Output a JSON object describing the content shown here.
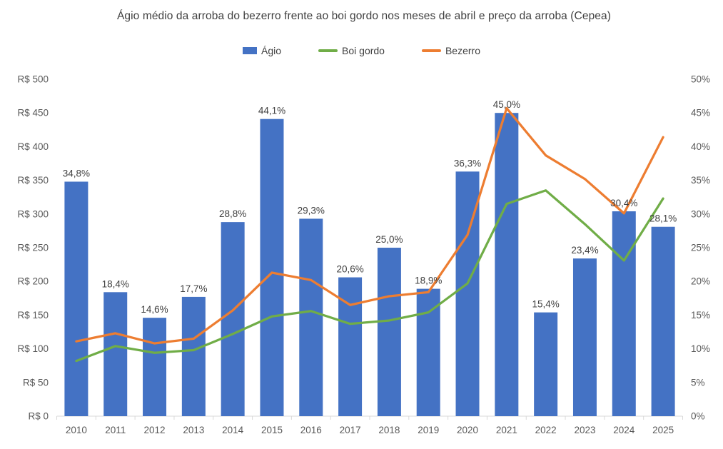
{
  "title": "Ágio médio da arroba do bezerro frente ao boi gordo nos meses de abril e preço da arroba (Cepea)",
  "legend": {
    "items": [
      {
        "label": "Ágio",
        "swatch": "bar-swatch"
      },
      {
        "label": "Boi gordo",
        "swatch": "line-swatch"
      },
      {
        "label": "Bezerro",
        "swatch": "line-swatch"
      }
    ]
  },
  "colors": {
    "agio_bar": "#4472C4",
    "boi_gordo_line": "#70AD47",
    "bezerro_line": "#ED7D31",
    "title_text": "#404040",
    "data_label_text": "#404040",
    "axis_label_text": "#595959",
    "axis_line": "#D9D9D9",
    "background": "#FFFFFF"
  },
  "chart_data": {
    "type": "bar+line combo",
    "title": "Ágio médio da arroba do bezerro frente ao boi gordo nos meses de abril e preço da arroba (Cepea)",
    "categories": [
      "2010",
      "2011",
      "2012",
      "2013",
      "2014",
      "2015",
      "2016",
      "2017",
      "2018",
      "2019",
      "2020",
      "2021",
      "2022",
      "2023",
      "2024",
      "2025"
    ],
    "series": [
      {
        "name": "Ágio",
        "type": "bar",
        "axis": "right",
        "unit": "%",
        "values": [
          34.8,
          18.4,
          14.6,
          17.7,
          28.8,
          44.1,
          29.3,
          20.6,
          25.0,
          18.9,
          36.3,
          45.0,
          15.4,
          23.4,
          30.4,
          28.1
        ],
        "data_labels": [
          "34,8%",
          "18,4%",
          "14,6%",
          "17,7%",
          "28,8%",
          "44,1%",
          "29,3%",
          "20,6%",
          "25,0%",
          "18,9%",
          "36,3%",
          "45,0%",
          "15,4%",
          "23,4%",
          "30,4%",
          "28,1%"
        ]
      },
      {
        "name": "Boi gordo",
        "type": "line",
        "axis": "left",
        "unit": "R$",
        "values": [
          82,
          104,
          94,
          98,
          122,
          148,
          156,
          137,
          142,
          154,
          197,
          315,
          335,
          285,
          231,
          323
        ]
      },
      {
        "name": "Bezerro",
        "type": "line",
        "axis": "left",
        "unit": "R$",
        "values": [
          111,
          123,
          108,
          115,
          157,
          213,
          202,
          165,
          178,
          184,
          269,
          457,
          387,
          352,
          301,
          414
        ]
      }
    ],
    "left_axis": {
      "min": 0,
      "max": 500,
      "tick_values": [
        500,
        450,
        400,
        350,
        300,
        250,
        200,
        150,
        100,
        50,
        0
      ],
      "tick_labels": [
        "R$ 500",
        "R$ 450",
        "R$ 400",
        "R$ 350",
        "R$ 300",
        "R$ 250",
        "R$ 200",
        "R$ 150",
        "R$ 100",
        "R$ 50",
        "R$ 0"
      ]
    },
    "right_axis": {
      "min": 0,
      "max": 50,
      "tick_values": [
        50,
        45,
        40,
        35,
        30,
        25,
        20,
        15,
        10,
        5,
        0
      ],
      "tick_labels": [
        "50%",
        "45%",
        "40%",
        "35%",
        "30%",
        "25%",
        "20%",
        "15%",
        "10%",
        "5%",
        "0%"
      ]
    },
    "grid": "off",
    "legend_position": "top"
  }
}
